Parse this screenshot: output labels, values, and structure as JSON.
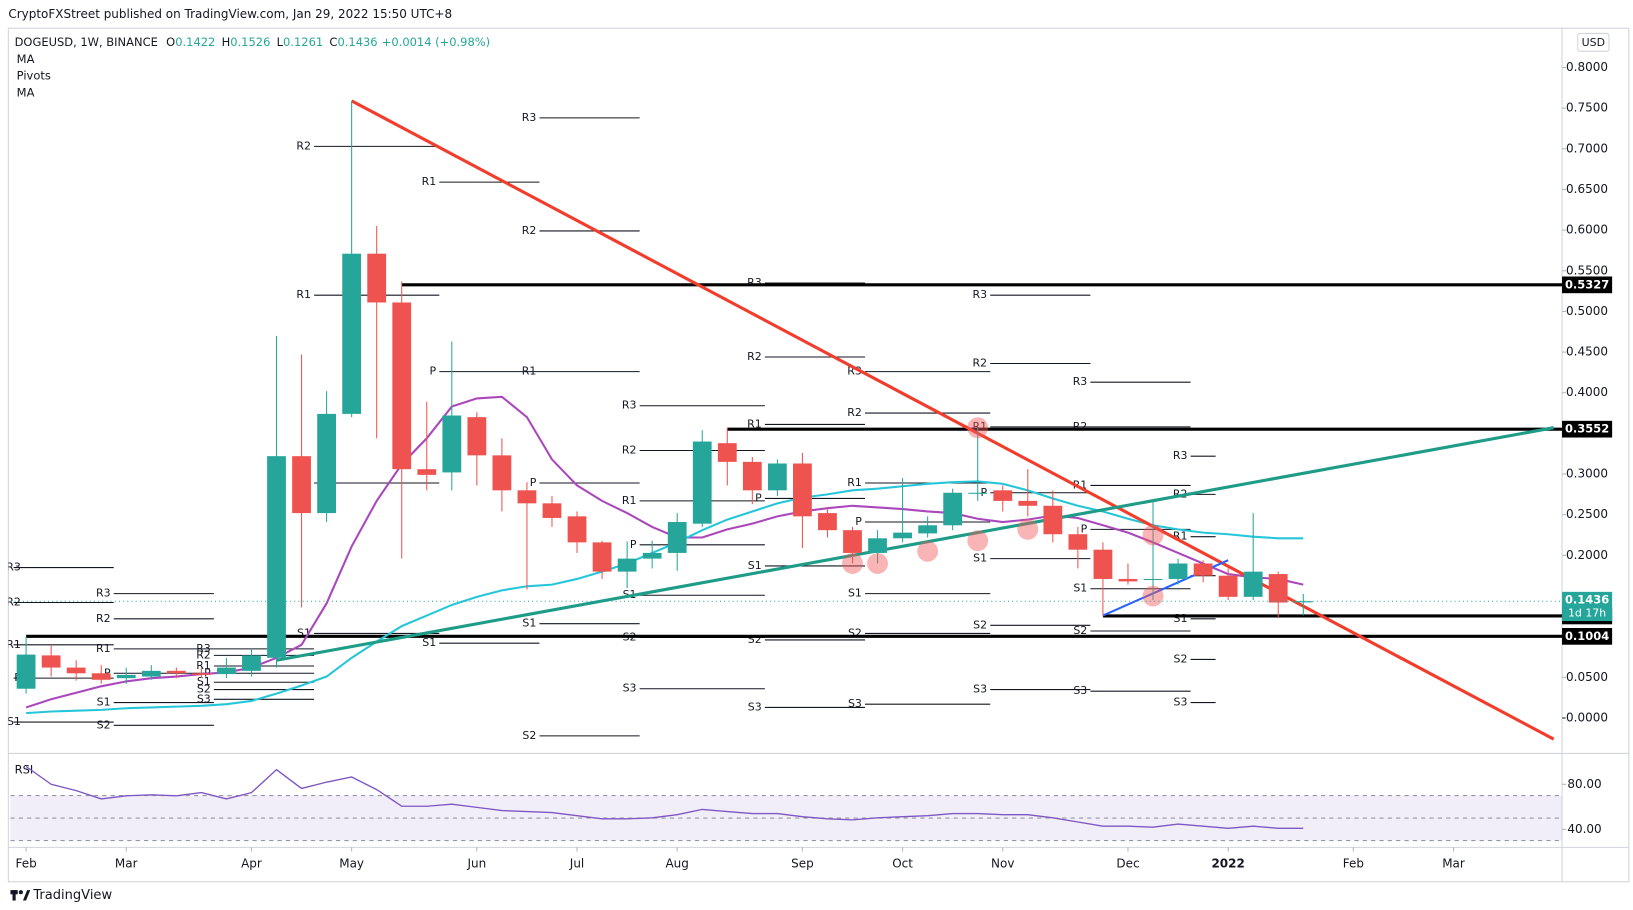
{
  "header": {
    "published": "CryptoFXStreet published on TradingView.com, Jan 29, 2022 15:50 UTC+8",
    "footer": "TradingView"
  },
  "chart_data": {
    "type": "candlestick",
    "symbol": "DOGEUSD, 1W, BINANCE",
    "ohlc_keys": [
      "O",
      "H",
      "L",
      "C"
    ],
    "change": "+0.0014 (+0.98%)",
    "indicators": [
      "MA",
      "Pivots",
      "MA"
    ],
    "currency": "USD",
    "countdown": "1d 17h",
    "up_color": "#26a69a",
    "down_color": "#ef5350",
    "categories": [
      "Feb",
      null,
      null,
      null,
      "Mar",
      null,
      null,
      null,
      null,
      "Apr",
      null,
      null,
      null,
      "May",
      null,
      null,
      null,
      null,
      "Jun",
      null,
      null,
      null,
      "Jul",
      null,
      null,
      null,
      "Aug",
      null,
      null,
      null,
      null,
      "Sep",
      null,
      null,
      null,
      "Oct",
      null,
      null,
      null,
      "Nov",
      null,
      null,
      null,
      null,
      "Dec",
      null,
      null,
      null,
      "2022",
      null,
      null,
      null,
      null,
      "Feb",
      null,
      null,
      null,
      "Mar",
      null,
      null,
      null,
      null
    ],
    "open": [
      0.036,
      0.077,
      0.062,
      0.055,
      0.049,
      0.051,
      0.058,
      0.055,
      0.054,
      0.058,
      0.074,
      0.322,
      0.252,
      0.374,
      0.571,
      0.511,
      0.306,
      0.302,
      0.37,
      0.323,
      0.28,
      0.264,
      0.248,
      0.216,
      0.18,
      0.196,
      0.203,
      0.239,
      0.338,
      0.315,
      0.28,
      0.313,
      0.252,
      0.231,
      0.203,
      0.221,
      0.227,
      0.237,
      0.276,
      0.28,
      0.267,
      0.261,
      0.226,
      0.207,
      0.171,
      0.171,
      0.171,
      0.19,
      0.175,
      0.149,
      0.177,
      0.1422,
      null,
      null,
      null,
      null,
      null,
      null,
      null,
      null,
      null,
      null
    ],
    "high": [
      0.1,
      0.09,
      0.071,
      0.065,
      0.062,
      0.065,
      0.062,
      0.062,
      0.074,
      0.085,
      0.47,
      0.447,
      0.402,
      0.759,
      0.605,
      0.537,
      0.389,
      0.463,
      0.376,
      0.344,
      0.29,
      0.273,
      0.254,
      0.218,
      0.217,
      0.218,
      0.252,
      0.354,
      0.357,
      0.321,
      0.318,
      0.326,
      0.259,
      0.235,
      0.231,
      0.295,
      0.248,
      0.282,
      0.357,
      0.286,
      0.306,
      0.28,
      0.235,
      0.216,
      0.19,
      0.267,
      0.196,
      0.194,
      0.184,
      0.252,
      0.18,
      0.1526,
      null,
      null,
      null,
      null,
      null,
      null,
      null,
      null,
      null,
      null
    ],
    "low": [
      0.03,
      0.051,
      0.046,
      0.042,
      0.042,
      0.047,
      0.049,
      0.049,
      0.049,
      0.051,
      0.062,
      0.136,
      0.241,
      0.37,
      0.344,
      0.196,
      0.28,
      0.28,
      0.286,
      0.254,
      0.158,
      0.235,
      0.203,
      0.171,
      0.16,
      0.184,
      0.181,
      0.235,
      0.286,
      0.263,
      0.273,
      0.209,
      0.222,
      0.19,
      0.19,
      0.216,
      0.222,
      0.231,
      0.267,
      0.254,
      0.248,
      0.216,
      0.184,
      0.126,
      0.164,
      0.145,
      0.164,
      0.167,
      0.145,
      0.145,
      0.123,
      0.1261,
      null,
      null,
      null,
      null,
      null,
      null,
      null,
      null,
      null,
      null
    ],
    "close": [
      0.078,
      0.062,
      0.055,
      0.047,
      0.053,
      0.058,
      0.055,
      0.053,
      0.062,
      0.077,
      0.322,
      0.252,
      0.374,
      0.571,
      0.511,
      0.306,
      0.299,
      0.372,
      0.323,
      0.28,
      0.264,
      0.246,
      0.216,
      0.18,
      0.196,
      0.203,
      0.241,
      0.34,
      0.315,
      0.28,
      0.313,
      0.248,
      0.231,
      0.203,
      0.221,
      0.228,
      0.237,
      0.277,
      0.277,
      0.267,
      0.261,
      0.226,
      0.207,
      0.171,
      0.168,
      0.171,
      0.19,
      0.175,
      0.149,
      0.18,
      0.142,
      0.1436,
      null,
      null,
      null,
      null,
      null,
      null,
      null,
      null,
      null,
      null
    ],
    "series": [
      {
        "name": "MA",
        "color": "#ab47bc",
        "values": [
          0.013,
          0.023,
          0.031,
          0.039,
          0.045,
          0.049,
          0.051,
          0.054,
          0.056,
          0.062,
          0.074,
          0.09,
          0.141,
          0.211,
          0.267,
          0.312,
          0.344,
          0.383,
          0.393,
          0.395,
          0.37,
          0.318,
          0.286,
          0.267,
          0.252,
          0.235,
          0.222,
          0.222,
          0.232,
          0.239,
          0.248,
          0.254,
          0.258,
          0.261,
          0.259,
          0.257,
          0.254,
          0.252,
          0.245,
          0.241,
          0.244,
          0.249,
          0.246,
          0.237,
          0.228,
          0.216,
          0.203,
          0.19,
          0.177,
          0.173,
          0.171,
          0.164,
          null,
          null,
          null,
          null,
          null,
          null,
          null,
          null,
          null,
          null
        ]
      },
      {
        "name": "MA",
        "color": "#26c6da",
        "values": [
          0.006,
          0.008,
          0.009,
          0.01,
          0.012,
          0.013,
          0.014,
          0.015,
          0.017,
          0.021,
          0.03,
          0.04,
          0.051,
          0.074,
          0.094,
          0.113,
          0.126,
          0.139,
          0.149,
          0.157,
          0.162,
          0.164,
          0.171,
          0.18,
          0.19,
          0.203,
          0.216,
          0.231,
          0.244,
          0.254,
          0.264,
          0.271,
          0.275,
          0.28,
          0.282,
          0.285,
          0.288,
          0.29,
          0.291,
          0.288,
          0.28,
          0.27,
          0.261,
          0.254,
          0.245,
          0.237,
          0.232,
          0.228,
          0.226,
          0.223,
          0.221,
          0.221,
          null,
          null,
          null,
          null,
          null,
          null,
          null,
          null,
          null,
          null
        ]
      }
    ],
    "ylim": [
      -0.041,
      0.847
    ],
    "yticks": [
      {
        "value": 0.8,
        "label": "0.8000"
      },
      {
        "value": 0.75,
        "label": "0.7500"
      },
      {
        "value": 0.7,
        "label": "0.7000"
      },
      {
        "value": 0.65,
        "label": "0.6500"
      },
      {
        "value": 0.6,
        "label": "0.6000"
      },
      {
        "value": 0.55,
        "label": "0.5500"
      },
      {
        "value": 0.5,
        "label": "0.5000"
      },
      {
        "value": 0.45,
        "label": "0.4500"
      },
      {
        "value": 0.4,
        "label": "0.4000"
      },
      {
        "value": 0.35,
        "label": "0.3500"
      },
      {
        "value": 0.3,
        "label": "0.3000"
      },
      {
        "value": 0.25,
        "label": "0.2500"
      },
      {
        "value": 0.2,
        "label": "0.2000"
      },
      {
        "value": 0.05,
        "label": "0.0500"
      },
      {
        "value": 0,
        "label": "-0.0000"
      }
    ],
    "grid": false,
    "levels": [
      {
        "value": 0.5327,
        "from": 15
      },
      {
        "value": 0.3552,
        "from": 28
      },
      {
        "value": 0.1255,
        "from": 43
      },
      {
        "value": 0.1004,
        "from": 0
      }
    ],
    "trendlines": [
      {
        "color": "#f23d2d",
        "from": [
          13,
          0.759
        ],
        "to": [
          61,
          -0.026
        ]
      },
      {
        "color": "#1e9c88",
        "from": [
          10,
          0.071
        ],
        "to": [
          61,
          0.357
        ]
      },
      {
        "color": "#2962ff",
        "from": [
          43,
          0.126
        ],
        "to": [
          48,
          0.194
        ]
      }
    ],
    "highlights": [
      [
        33,
        0.19
      ],
      [
        34,
        0.19
      ],
      [
        36,
        0.205
      ],
      [
        38,
        0.357
      ],
      [
        38,
        0.218
      ],
      [
        40,
        0.232
      ],
      [
        45,
        0.225
      ],
      [
        45,
        0.15
      ]
    ],
    "pivots": [
      {
        "from": 0,
        "to": 4,
        "levels": [
          {
            "label": "R3",
            "value": 0.185
          },
          {
            "label": "R2",
            "value": 0.142
          },
          {
            "label": "R1",
            "value": 0.09
          },
          {
            "label": "P",
            "value": 0.049
          },
          {
            "label": "S1",
            "value": -0.005
          }
        ]
      },
      {
        "from": 4,
        "to": 8,
        "levels": [
          {
            "label": "R3",
            "value": 0.153
          },
          {
            "label": "R2",
            "value": 0.122
          },
          {
            "label": "R1",
            "value": 0.085
          },
          {
            "label": "P",
            "value": 0.055
          },
          {
            "label": "S1",
            "value": 0.019
          },
          {
            "label": "S2",
            "value": -0.009
          }
        ]
      },
      {
        "from": 8,
        "to": 12,
        "levels": [
          {
            "label": "R3",
            "value": 0.085
          },
          {
            "label": "R2",
            "value": 0.077
          },
          {
            "label": "R1",
            "value": 0.064
          },
          {
            "label": "P",
            "value": 0.055
          },
          {
            "label": "S1",
            "value": 0.044
          },
          {
            "label": "S2",
            "value": 0.035
          },
          {
            "label": "S3",
            "value": 0.023
          }
        ]
      },
      {
        "from": 12,
        "to": 17,
        "levels": [
          {
            "label": "R2",
            "value": 0.703
          },
          {
            "label": "R1",
            "value": 0.52
          },
          {
            "label": "P",
            "value": 0.289
          },
          {
            "label": "S1",
            "value": 0.104
          }
        ]
      },
      {
        "from": 17,
        "to": 21,
        "levels": [
          {
            "label": "R1",
            "value": 0.659
          },
          {
            "label": "P",
            "value": 0.426
          },
          {
            "label": "S1",
            "value": 0.092
          }
        ]
      },
      {
        "from": 21,
        "to": 25,
        "levels": [
          {
            "label": "R3",
            "value": 0.738
          },
          {
            "label": "R2",
            "value": 0.599
          },
          {
            "label": "R1",
            "value": 0.426
          },
          {
            "label": "P",
            "value": 0.289
          },
          {
            "label": "S1",
            "value": 0.116
          },
          {
            "label": "S2",
            "value": -0.022
          }
        ]
      },
      {
        "from": 25,
        "to": 30,
        "levels": [
          {
            "label": "R3",
            "value": 0.384
          },
          {
            "label": "R2",
            "value": 0.329
          },
          {
            "label": "R1",
            "value": 0.267
          },
          {
            "label": "P",
            "value": 0.213
          },
          {
            "label": "S1",
            "value": 0.151
          },
          {
            "label": "S2",
            "value": 0.099
          },
          {
            "label": "S3",
            "value": 0.036
          }
        ]
      },
      {
        "from": 30,
        "to": 34,
        "levels": [
          {
            "label": "R3",
            "value": 0.535
          },
          {
            "label": "R2",
            "value": 0.444
          },
          {
            "label": "R1",
            "value": 0.361
          },
          {
            "label": "P",
            "value": 0.27
          },
          {
            "label": "S1",
            "value": 0.187
          },
          {
            "label": "S2",
            "value": 0.096
          },
          {
            "label": "S3",
            "value": 0.013
          }
        ]
      },
      {
        "from": 34,
        "to": 39,
        "levels": [
          {
            "label": "R3",
            "value": 0.426
          },
          {
            "label": "R2",
            "value": 0.375
          },
          {
            "label": "R1",
            "value": 0.289
          },
          {
            "label": "P",
            "value": 0.241
          },
          {
            "label": "S1",
            "value": 0.153
          },
          {
            "label": "S2",
            "value": 0.104
          },
          {
            "label": "S3",
            "value": 0.017
          }
        ]
      },
      {
        "from": 39,
        "to": 43,
        "levels": [
          {
            "label": "R3",
            "value": 0.52
          },
          {
            "label": "R2",
            "value": 0.436
          },
          {
            "label": "R1",
            "value": 0.358
          },
          {
            "label": "P",
            "value": 0.277
          },
          {
            "label": "S1",
            "value": 0.196
          },
          {
            "label": "S2",
            "value": 0.114
          },
          {
            "label": "S3",
            "value": 0.035
          }
        ]
      },
      {
        "from": 43,
        "to": 47,
        "levels": [
          {
            "label": "R3",
            "value": 0.413
          },
          {
            "label": "R2",
            "value": 0.358
          },
          {
            "label": "R1",
            "value": 0.286
          },
          {
            "label": "P",
            "value": 0.232
          },
          {
            "label": "S1",
            "value": 0.159
          },
          {
            "label": "S2",
            "value": 0.107
          },
          {
            "label": "S3",
            "value": 0.033
          }
        ]
      },
      {
        "from": 47,
        "to": 48,
        "levels": [
          {
            "label": "R3",
            "value": 0.322
          },
          {
            "label": "R2",
            "value": 0.275
          },
          {
            "label": "R1",
            "value": 0.223
          },
          {
            "label": "P",
            "value": 0.175
          },
          {
            "label": "S1",
            "value": 0.122
          },
          {
            "label": "S2",
            "value": 0.072
          },
          {
            "label": "S3",
            "value": 0.019
          }
        ]
      }
    ],
    "rsi": {
      "name": "RSI",
      "color": "#7e57c2",
      "values": [
        95.8,
        80.0,
        74.4,
        67.0,
        69.8,
        70.7,
        69.8,
        72.6,
        67.0,
        72.6,
        93.0,
        76.3,
        81.9,
        86.5,
        75.3,
        60.5,
        60.5,
        62.3,
        59.5,
        56.7,
        55.8,
        54.9,
        52.1,
        49.3,
        49.3,
        50.2,
        53.0,
        57.7,
        55.8,
        54.0,
        54.0,
        51.2,
        49.3,
        48.4,
        50.2,
        51.2,
        52.1,
        54.0,
        54.0,
        53.0,
        53.0,
        50.2,
        46.5,
        42.8,
        42.8,
        41.9,
        44.7,
        42.8,
        40.9,
        42.8,
        40.9,
        40.9,
        null,
        null,
        null,
        null,
        null,
        null,
        null,
        null,
        null,
        null
      ],
      "ylim": [
        24,
        100
      ],
      "yticks": [
        {
          "value": 80,
          "label": "80.00"
        },
        {
          "value": 40,
          "label": "40.00"
        }
      ],
      "levels": [
        70,
        50,
        30
      ]
    }
  }
}
